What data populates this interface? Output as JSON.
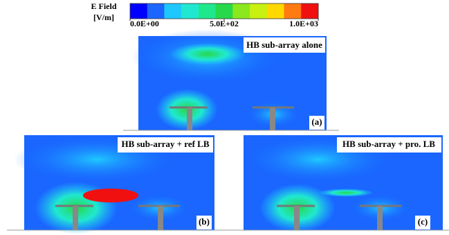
{
  "legend": {
    "title": "E Field",
    "unit": "[V/m]",
    "ticks": [
      {
        "value": 0,
        "label": "0.0E+00"
      },
      {
        "value": 500,
        "label": "5.0E+02"
      },
      {
        "value": 1000,
        "label": "1.0E+03"
      }
    ],
    "range": [
      0,
      1000
    ],
    "colors": [
      "#0000ff",
      "#1a66ff",
      "#1ec8ff",
      "#20e8d0",
      "#1fe88c",
      "#27d84a",
      "#8ae81c",
      "#c8f010",
      "#ffd800",
      "#ff7a10",
      "#f01010"
    ]
  },
  "panels": [
    {
      "title": "HB sub-array alone",
      "label": "(a)"
    },
    {
      "title": "HB sub-array + ref LB",
      "label": "(b)"
    },
    {
      "title": "HB sub-array + pro. LB",
      "label": "(c)"
    }
  ]
}
